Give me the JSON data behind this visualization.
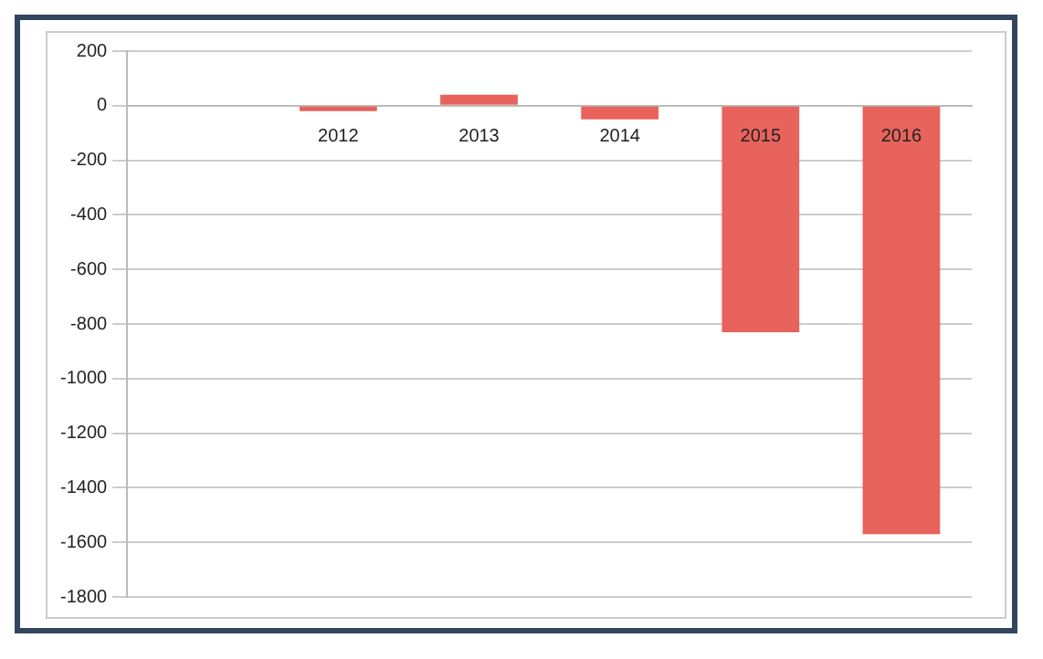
{
  "chart_data": {
    "type": "bar",
    "categories": [
      null,
      "2012",
      "2013",
      "2014",
      "2015",
      "2016"
    ],
    "values": [
      null,
      -20,
      40,
      -50,
      -830,
      -1570
    ],
    "color": "#e8635c",
    "ylim": [
      -1800,
      200
    ],
    "yticks": [
      -1800,
      -1600,
      -1400,
      -1200,
      -1000,
      -800,
      -600,
      -400,
      -200,
      0,
      200
    ],
    "grid": "y"
  }
}
